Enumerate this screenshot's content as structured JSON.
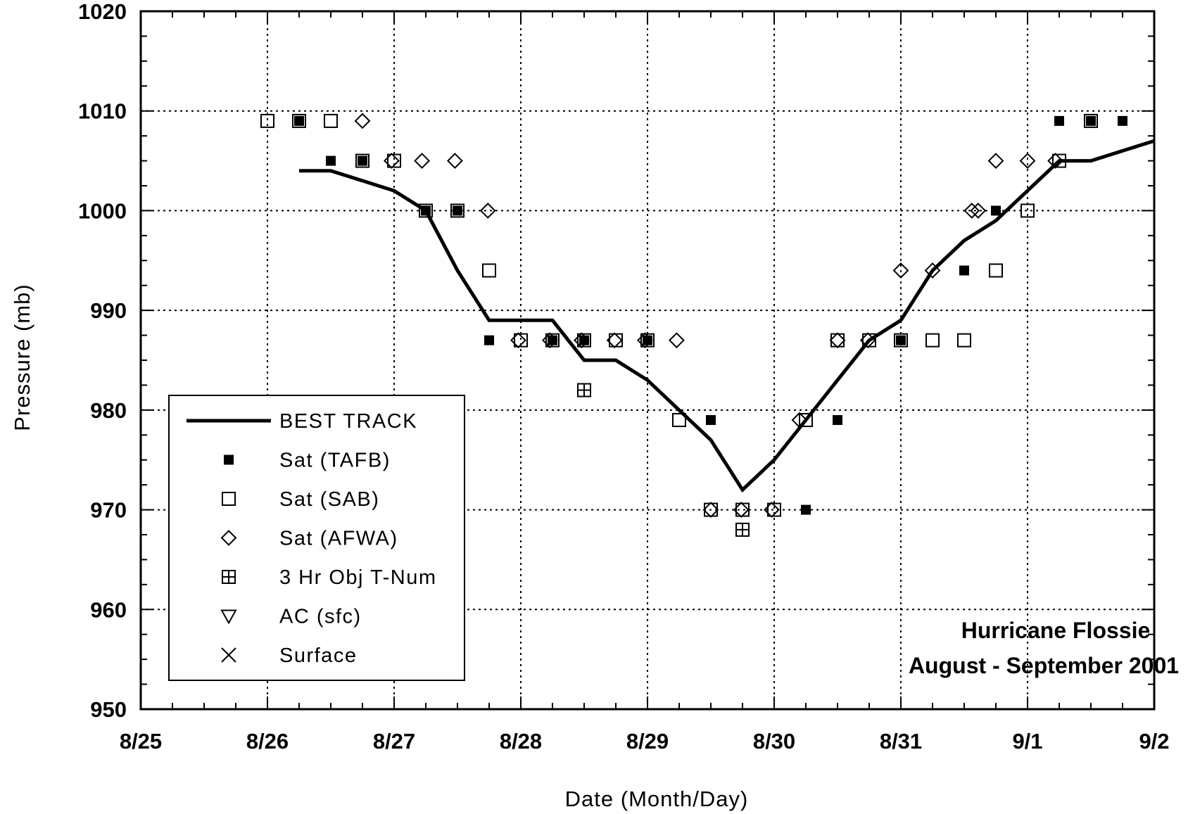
{
  "chart_data": {
    "type": "scatter",
    "xlabel": "Date (Month/Day)",
    "ylabel": "Pressure (mb)",
    "xlim": [
      0,
      8
    ],
    "ylim": [
      950,
      1020
    ],
    "x_ticks": [
      {
        "v": 0,
        "label": "8/25"
      },
      {
        "v": 1,
        "label": "8/26"
      },
      {
        "v": 2,
        "label": "8/27"
      },
      {
        "v": 3,
        "label": "8/28"
      },
      {
        "v": 4,
        "label": "8/29"
      },
      {
        "v": 5,
        "label": "8/30"
      },
      {
        "v": 6,
        "label": "8/31"
      },
      {
        "v": 7,
        "label": "9/1"
      },
      {
        "v": 8,
        "label": "9/2"
      }
    ],
    "y_ticks": [
      950,
      960,
      970,
      980,
      990,
      1000,
      1010,
      1020
    ],
    "grid": true,
    "legend_position": "bottom-left",
    "annotations": [
      "Hurricane Flossie",
      "August - September 2001"
    ],
    "series": [
      {
        "name": "BEST TRACK",
        "marker": "line",
        "points": [
          [
            1.25,
            1004
          ],
          [
            1.5,
            1004
          ],
          [
            1.75,
            1003
          ],
          [
            2.0,
            1002
          ],
          [
            2.25,
            1000
          ],
          [
            2.5,
            994
          ],
          [
            2.75,
            989
          ],
          [
            3.0,
            989
          ],
          [
            3.25,
            989
          ],
          [
            3.5,
            985
          ],
          [
            3.75,
            985
          ],
          [
            4.0,
            983
          ],
          [
            4.25,
            980
          ],
          [
            4.5,
            977
          ],
          [
            4.75,
            972
          ],
          [
            5.0,
            975
          ],
          [
            5.25,
            979
          ],
          [
            5.5,
            983
          ],
          [
            5.75,
            987
          ],
          [
            6.0,
            989
          ],
          [
            6.25,
            994
          ],
          [
            6.5,
            997
          ],
          [
            6.75,
            999
          ],
          [
            7.0,
            1002
          ],
          [
            7.25,
            1005
          ],
          [
            7.5,
            1005
          ],
          [
            7.75,
            1006
          ],
          [
            8.0,
            1007
          ]
        ]
      },
      {
        "name": "Sat (TAFB)",
        "marker": "filled-square",
        "points": [
          [
            1.25,
            1009
          ],
          [
            1.5,
            1005
          ],
          [
            1.75,
            1005
          ],
          [
            2.25,
            1000
          ],
          [
            2.5,
            1000
          ],
          [
            2.75,
            987
          ],
          [
            3.25,
            987
          ],
          [
            3.5,
            987
          ],
          [
            4.0,
            987
          ],
          [
            4.5,
            979
          ],
          [
            5.25,
            970
          ],
          [
            5.5,
            979
          ],
          [
            6.0,
            987
          ],
          [
            6.5,
            994
          ],
          [
            6.75,
            1000
          ],
          [
            7.25,
            1009
          ],
          [
            7.5,
            1009
          ],
          [
            7.75,
            1009
          ]
        ]
      },
      {
        "name": "Sat (SAB)",
        "marker": "open-square",
        "points": [
          [
            1.0,
            1009
          ],
          [
            1.25,
            1009
          ],
          [
            1.5,
            1009
          ],
          [
            1.75,
            1005
          ],
          [
            2.0,
            1005
          ],
          [
            2.25,
            1000
          ],
          [
            2.5,
            1000
          ],
          [
            2.75,
            994
          ],
          [
            3.0,
            987
          ],
          [
            3.25,
            987
          ],
          [
            3.5,
            987
          ],
          [
            3.75,
            987
          ],
          [
            4.0,
            987
          ],
          [
            4.25,
            979
          ],
          [
            4.5,
            970
          ],
          [
            4.75,
            970
          ],
          [
            5.0,
            970
          ],
          [
            5.25,
            979
          ],
          [
            5.5,
            987
          ],
          [
            5.75,
            987
          ],
          [
            6.0,
            987
          ],
          [
            6.25,
            987
          ],
          [
            6.5,
            987
          ],
          [
            6.75,
            994
          ],
          [
            7.0,
            1000
          ],
          [
            7.25,
            1005
          ],
          [
            7.5,
            1009
          ]
        ]
      },
      {
        "name": "Sat (AFWA)",
        "marker": "open-diamond",
        "points": [
          [
            1.75,
            1009
          ],
          [
            1.98,
            1005
          ],
          [
            2.22,
            1005
          ],
          [
            2.48,
            1005
          ],
          [
            2.74,
            1000
          ],
          [
            2.98,
            987
          ],
          [
            3.23,
            987
          ],
          [
            3.48,
            987
          ],
          [
            3.74,
            987
          ],
          [
            3.98,
            987
          ],
          [
            4.23,
            987
          ],
          [
            4.5,
            970
          ],
          [
            4.74,
            970
          ],
          [
            4.98,
            970
          ],
          [
            5.2,
            979
          ],
          [
            5.5,
            987
          ],
          [
            5.74,
            987
          ],
          [
            6.0,
            994
          ],
          [
            6.25,
            994
          ],
          [
            6.56,
            1000
          ],
          [
            6.61,
            1000
          ],
          [
            6.75,
            1005
          ],
          [
            7.0,
            1005
          ],
          [
            7.22,
            1005
          ]
        ]
      },
      {
        "name": "3 Hr Obj T-Num",
        "marker": "crossed-square",
        "points": [
          [
            3.5,
            982
          ],
          [
            4.75,
            968
          ]
        ]
      },
      {
        "name": "AC (sfc)",
        "marker": "open-triangle-down",
        "points": []
      },
      {
        "name": "Surface",
        "marker": "x-cross",
        "points": []
      }
    ]
  }
}
